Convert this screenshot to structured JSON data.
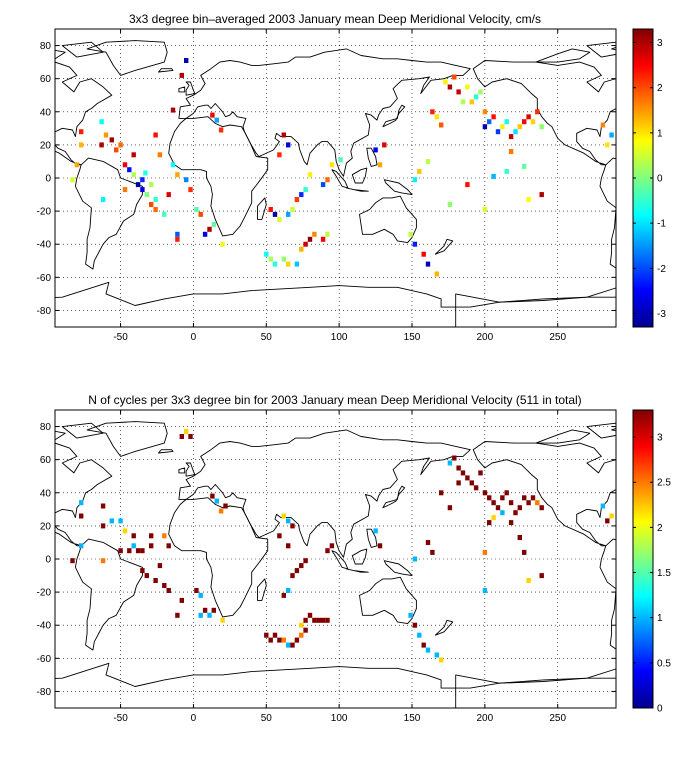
{
  "chart_data": [
    {
      "type": "heatmap",
      "title": "3x3 degree bin–averaged 2003 January mean Deep Meridional Velocity, cm/s",
      "xlabel": "",
      "ylabel": "",
      "xlim": [
        -95,
        290
      ],
      "ylim": [
        -90,
        90
      ],
      "x_ticks": [
        -50,
        0,
        50,
        100,
        150,
        200,
        250
      ],
      "y_ticks": [
        80,
        60,
        40,
        20,
        0,
        -20,
        -40,
        -60,
        -80
      ],
      "grid": true,
      "colorbar": {
        "range": [
          -3.3,
          3.3
        ],
        "ticks": [
          3,
          2,
          1,
          0,
          -1,
          -2,
          -3
        ],
        "colormap": "jet"
      },
      "bin_size_deg": 3,
      "bins": [
        [
          -77,
          20,
          1.3
        ],
        [
          -63,
          34,
          -0.8
        ],
        [
          -60,
          26,
          1.5
        ],
        [
          -56,
          23,
          3.1
        ],
        [
          -53,
          17,
          2.0
        ],
        [
          -50,
          20,
          1.8
        ],
        [
          -47,
          8,
          2.6
        ],
        [
          -44,
          5,
          -2.4
        ],
        [
          -41,
          2,
          0.3
        ],
        [
          -38,
          -4,
          -3.0
        ],
        [
          -35,
          -7,
          -2.7
        ],
        [
          -32,
          -10,
          0.0
        ],
        [
          -29,
          -16,
          2.0
        ],
        [
          -26,
          -19,
          1.8
        ],
        [
          -20,
          -22,
          -0.4
        ],
        [
          -14,
          41,
          3.0
        ],
        [
          -23,
          14,
          1.7
        ],
        [
          -26,
          26,
          2.4
        ],
        [
          -80,
          8,
          1.4
        ],
        [
          -83,
          -1,
          0.5
        ],
        [
          -62,
          -13,
          -0.9
        ],
        [
          -5,
          71,
          -3.0
        ],
        [
          -8,
          62,
          3.0
        ],
        [
          13,
          38,
          2.6
        ],
        [
          16,
          35,
          -1.4
        ],
        [
          19,
          29,
          2.2
        ],
        [
          -11,
          -37,
          2.3
        ],
        [
          2,
          -19,
          -0.3
        ],
        [
          5,
          -22,
          2.0
        ],
        [
          8,
          -34,
          -2.7
        ],
        [
          11,
          -31,
          3.0
        ],
        [
          14,
          -28,
          -0.2
        ],
        [
          20,
          -40,
          0.7
        ],
        [
          -11,
          -34,
          -1.9
        ],
        [
          50,
          -46,
          -0.8
        ],
        [
          53,
          -49,
          0.3
        ],
        [
          56,
          -52,
          -0.6
        ],
        [
          62,
          -49,
          0.1
        ],
        [
          65,
          -52,
          1.1
        ],
        [
          71,
          -52,
          -1.2
        ],
        [
          77,
          -40,
          2.8
        ],
        [
          80,
          -37,
          3.2
        ],
        [
          83,
          -34,
          1.6
        ],
        [
          89,
          -37,
          2.5
        ],
        [
          92,
          -34,
          0.4
        ],
        [
          74,
          -43,
          1.3
        ],
        [
          65,
          -22,
          -1.4
        ],
        [
          68,
          -19,
          0.5
        ],
        [
          71,
          -13,
          2.1
        ],
        [
          74,
          -10,
          -2.2
        ],
        [
          77,
          -7,
          -0.5
        ],
        [
          80,
          2,
          0.9
        ],
        [
          62,
          26,
          3.0
        ],
        [
          65,
          20,
          -2.6
        ],
        [
          59,
          14,
          2.2
        ],
        [
          56,
          -22,
          -3.0
        ],
        [
          53,
          -19,
          2.4
        ],
        [
          59,
          -25,
          0.6
        ],
        [
          89,
          -4,
          -2.0
        ],
        [
          92,
          -1,
          1.8
        ],
        [
          95,
          8,
          1.0
        ],
        [
          101,
          11,
          -0.3
        ],
        [
          125,
          17,
          -2.6
        ],
        [
          128,
          8,
          1.4
        ],
        [
          131,
          20,
          2.7
        ],
        [
          149,
          -34,
          0.4
        ],
        [
          152,
          -40,
          -2.3
        ],
        [
          158,
          -46,
          2.5
        ],
        [
          161,
          -52,
          -3.0
        ],
        [
          167,
          -58,
          1.3
        ],
        [
          173,
          58,
          0.9
        ],
        [
          176,
          55,
          3.0
        ],
        [
          179,
          61,
          2.0
        ],
        [
          182,
          52,
          2.8
        ],
        [
          185,
          46,
          0.3
        ],
        [
          188,
          55,
          0.7
        ],
        [
          191,
          46,
          1.2
        ],
        [
          194,
          49,
          -0.6
        ],
        [
          197,
          52,
          0.2
        ],
        [
          200,
          40,
          1.6
        ],
        [
          203,
          34,
          -1.8
        ],
        [
          206,
          37,
          2.4
        ],
        [
          209,
          28,
          -2.1
        ],
        [
          212,
          31,
          0.9
        ],
        [
          215,
          34,
          -0.7
        ],
        [
          218,
          25,
          2.9
        ],
        [
          221,
          28,
          -1.0
        ],
        [
          224,
          31,
          1.2
        ],
        [
          227,
          34,
          2.5
        ],
        [
          230,
          37,
          2.7
        ],
        [
          233,
          34,
          1.1
        ],
        [
          236,
          40,
          2.2
        ],
        [
          239,
          31,
          0.1
        ],
        [
          215,
          4,
          -0.5
        ],
        [
          218,
          16,
          1.7
        ],
        [
          200,
          31,
          -3.0
        ],
        [
          200,
          -19,
          0.6
        ],
        [
          206,
          1,
          -1.3
        ],
        [
          227,
          7,
          -0.2
        ],
        [
          230,
          -13,
          0.8
        ],
        [
          239,
          -10,
          3.0
        ],
        [
          170,
          32,
          1.9
        ],
        [
          167,
          37,
          1.0
        ],
        [
          164,
          40,
          2.3
        ],
        [
          161,
          10,
          0.4
        ],
        [
          155,
          4,
          1.2
        ],
        [
          152,
          -1,
          -0.9
        ],
        [
          176,
          -16,
          0.1
        ],
        [
          188,
          -4,
          2.4
        ],
        [
          281,
          32,
          1.6
        ],
        [
          284,
          20,
          1.0
        ],
        [
          287,
          26,
          -1.4
        ],
        [
          -77,
          28,
          2.3
        ],
        [
          -63,
          20,
          3.0
        ],
        [
          -47,
          -7,
          1.7
        ],
        [
          -41,
          14,
          2.9
        ],
        [
          -35,
          -1,
          -2.2
        ],
        [
          -29,
          -4,
          0.3
        ],
        [
          -26,
          -13,
          -0.5
        ],
        [
          -17,
          -10,
          2.7
        ],
        [
          -14,
          8,
          -0.8
        ],
        [
          -11,
          2,
          1.4
        ],
        [
          -5,
          -1,
          -1.6
        ],
        [
          -2,
          -7,
          2.2
        ],
        [
          -33,
          3,
          -0.6
        ]
      ]
    },
    {
      "type": "heatmap",
      "title": "N of cycles per 3x3 degree bin for 2003 January mean Deep Meridional Velocity (511 in total)",
      "xlabel": "",
      "ylabel": "",
      "xlim": [
        -95,
        290
      ],
      "ylim": [
        -90,
        90
      ],
      "x_ticks": [
        -50,
        0,
        50,
        100,
        150,
        200,
        250
      ],
      "y_ticks": [
        80,
        60,
        40,
        20,
        0,
        -20,
        -40,
        -60,
        -80
      ],
      "grid": true,
      "colorbar": {
        "range": [
          0,
          3.3
        ],
        "ticks": [
          3,
          2.5,
          2,
          1.5,
          1,
          0.5,
          0
        ],
        "colormap": "jet"
      },
      "bin_size_deg": 3,
      "bins": [
        [
          -8,
          74,
          3.3
        ],
        [
          -5,
          77,
          2.2
        ],
        [
          -2,
          74,
          3.3
        ],
        [
          13,
          38,
          3.3
        ],
        [
          16,
          35,
          1.0
        ],
        [
          19,
          29,
          2.5
        ],
        [
          22,
          32,
          3.3
        ],
        [
          -77,
          34,
          1.0
        ],
        [
          -77,
          26,
          3.3
        ],
        [
          -62,
          32,
          3.3
        ],
        [
          -62,
          20,
          3.3
        ],
        [
          -56,
          23,
          1.0
        ],
        [
          -50,
          23,
          1.0
        ],
        [
          -47,
          17,
          2.2
        ],
        [
          -50,
          5,
          3.3
        ],
        [
          -44,
          5,
          3.3
        ],
        [
          -41,
          8,
          1.0
        ],
        [
          -41,
          14,
          3.3
        ],
        [
          -38,
          5,
          3.3
        ],
        [
          -35,
          5,
          3.3
        ],
        [
          -29,
          8,
          3.3
        ],
        [
          -35,
          -7,
          3.3
        ],
        [
          -32,
          -10,
          3.3
        ],
        [
          -26,
          -13,
          3.3
        ],
        [
          -20,
          -16,
          3.3
        ],
        [
          -17,
          -19,
          3.3
        ],
        [
          -11,
          -34,
          3.3
        ],
        [
          -8,
          -25,
          3.3
        ],
        [
          2,
          -19,
          3.3
        ],
        [
          5,
          -22,
          1.0
        ],
        [
          5,
          -34,
          1.0
        ],
        [
          8,
          -31,
          3.3
        ],
        [
          11,
          -34,
          1.0
        ],
        [
          14,
          -31,
          3.3
        ],
        [
          20,
          -37,
          2.2
        ],
        [
          -20,
          14,
          2.5
        ],
        [
          -17,
          8,
          3.3
        ],
        [
          -77,
          8,
          1.0
        ],
        [
          -83,
          -1,
          3.3
        ],
        [
          -62,
          -1,
          2.5
        ],
        [
          50,
          -46,
          3.3
        ],
        [
          53,
          -49,
          3.3
        ],
        [
          56,
          -46,
          3.3
        ],
        [
          59,
          -49,
          3.3
        ],
        [
          62,
          -49,
          2.5
        ],
        [
          65,
          -52,
          1.0
        ],
        [
          68,
          -52,
          3.3
        ],
        [
          71,
          -49,
          3.3
        ],
        [
          74,
          -40,
          2.2
        ],
        [
          77,
          -37,
          3.3
        ],
        [
          80,
          -34,
          3.3
        ],
        [
          83,
          -37,
          3.3
        ],
        [
          86,
          -37,
          3.3
        ],
        [
          89,
          -37,
          3.3
        ],
        [
          92,
          -37,
          3.3
        ],
        [
          74,
          -46,
          2.5
        ],
        [
          77,
          -43,
          3.3
        ],
        [
          62,
          -22,
          3.3
        ],
        [
          65,
          -19,
          1.0
        ],
        [
          68,
          -10,
          3.3
        ],
        [
          71,
          -7,
          3.3
        ],
        [
          74,
          -4,
          3.3
        ],
        [
          77,
          -1,
          3.3
        ],
        [
          62,
          26,
          2.2
        ],
        [
          65,
          23,
          1.0
        ],
        [
          68,
          20,
          3.3
        ],
        [
          59,
          14,
          3.3
        ],
        [
          65,
          8,
          3.3
        ],
        [
          92,
          5,
          3.3
        ],
        [
          95,
          8,
          3.3
        ],
        [
          125,
          17,
          1.0
        ],
        [
          128,
          8,
          3.3
        ],
        [
          149,
          -34,
          1.0
        ],
        [
          152,
          -40,
          3.3
        ],
        [
          155,
          -46,
          1.0
        ],
        [
          158,
          -52,
          3.3
        ],
        [
          161,
          -55,
          1.0
        ],
        [
          167,
          -58,
          1.0
        ],
        [
          170,
          -61,
          2.2
        ],
        [
          176,
          58,
          1.0
        ],
        [
          179,
          61,
          3.3
        ],
        [
          182,
          55,
          3.3
        ],
        [
          185,
          52,
          3.3
        ],
        [
          188,
          49,
          3.3
        ],
        [
          182,
          46,
          3.3
        ],
        [
          191,
          46,
          3.3
        ],
        [
          194,
          43,
          3.3
        ],
        [
          197,
          52,
          3.3
        ],
        [
          200,
          40,
          3.3
        ],
        [
          203,
          37,
          3.3
        ],
        [
          206,
          34,
          3.3
        ],
        [
          209,
          31,
          3.3
        ],
        [
          212,
          37,
          3.3
        ],
        [
          215,
          40,
          3.3
        ],
        [
          218,
          34,
          3.3
        ],
        [
          221,
          28,
          3.3
        ],
        [
          224,
          31,
          3.3
        ],
        [
          227,
          37,
          3.3
        ],
        [
          230,
          34,
          3.3
        ],
        [
          233,
          37,
          3.3
        ],
        [
          236,
          34,
          2.5
        ],
        [
          239,
          31,
          3.3
        ],
        [
          203,
          22,
          3.3
        ],
        [
          206,
          25,
          2.2
        ],
        [
          212,
          28,
          1.0
        ],
        [
          218,
          22,
          3.3
        ],
        [
          224,
          13,
          3.3
        ],
        [
          227,
          4,
          3.3
        ],
        [
          230,
          -13,
          2.2
        ],
        [
          239,
          -10,
          3.3
        ],
        [
          200,
          -19,
          1.0
        ],
        [
          200,
          4,
          2.5
        ],
        [
          176,
          31,
          3.3
        ],
        [
          170,
          40,
          3.3
        ],
        [
          161,
          10,
          3.3
        ],
        [
          164,
          4,
          3.3
        ],
        [
          152,
          0,
          1.0
        ],
        [
          281,
          32,
          1.0
        ],
        [
          284,
          23,
          3.3
        ],
        [
          287,
          26,
          2.2
        ],
        [
          -23,
          -4,
          3.3
        ],
        [
          -29,
          14,
          3.3
        ]
      ]
    }
  ]
}
